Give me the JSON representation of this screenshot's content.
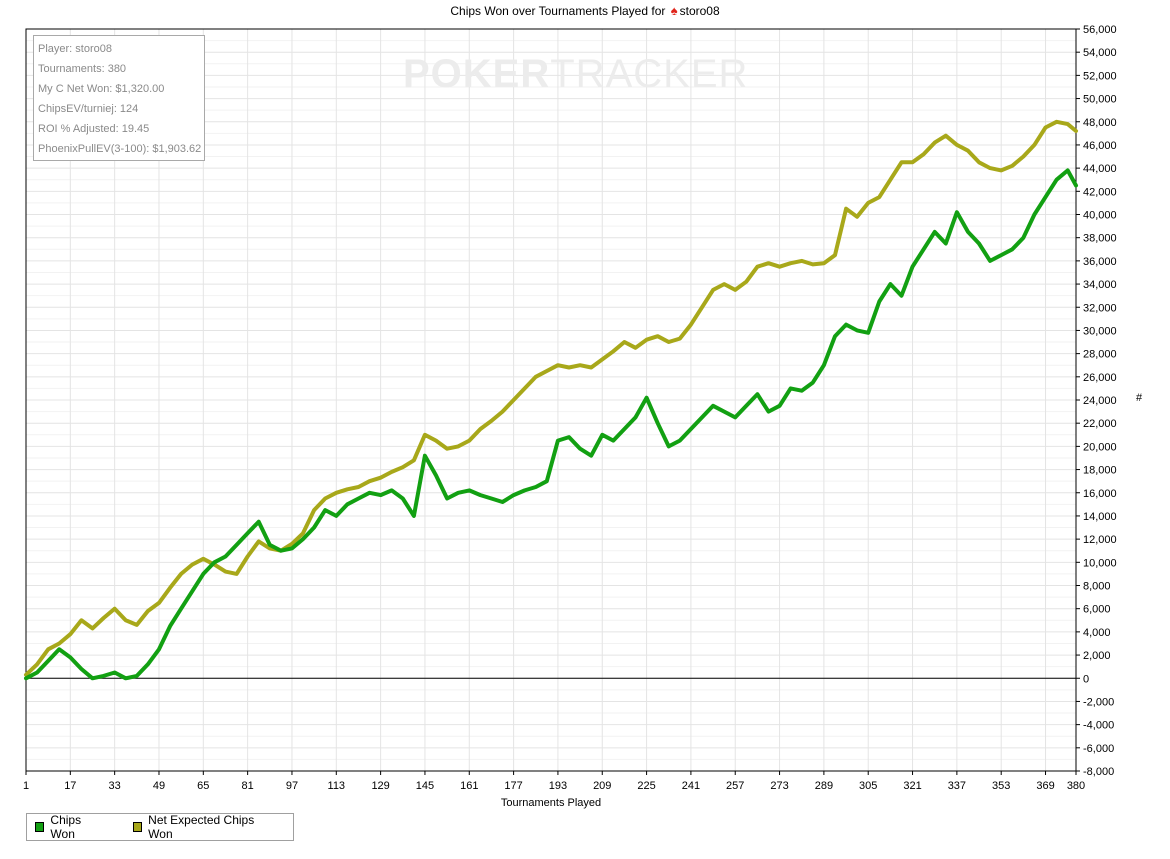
{
  "title": {
    "prefix": "Chips Won over Tournaments Played for",
    "player": "storo08"
  },
  "watermark": {
    "bold_part": "POKER",
    "thin_part": "TRACKER"
  },
  "stats": [
    {
      "label": "Player",
      "value": "storo08",
      "text": "Player: storo08"
    },
    {
      "label": "Tournaments",
      "value": "380",
      "text": "Tournaments: 380"
    },
    {
      "label": "My C Net Won",
      "value": "$1,320.00",
      "text": "My C Net Won: $1,320.00"
    },
    {
      "label": "ChipsEV/turniej",
      "value": "124",
      "text": "ChipsEV/turniej: 124"
    },
    {
      "label": "ROI % Adjusted",
      "value": "19.45",
      "text": "ROI % Adjusted: 19.45"
    },
    {
      "label": "PhoenixPullEV(3-100)",
      "value": "$1,903.62",
      "text": "PhoenixPullEV(3-100): $1,903.62"
    }
  ],
  "legend": [
    {
      "name": "Chips Won",
      "color": "#12a012"
    },
    {
      "name": "Net Expected Chips Won",
      "color": "#a8a81a"
    }
  ],
  "chart_data": {
    "type": "line",
    "title": "Chips Won over Tournaments Played for storo08",
    "xlabel": "Tournaments Played",
    "ylabel": "#",
    "xlim": [
      1,
      380
    ],
    "ylim": [
      -8000,
      56000
    ],
    "x_ticks": [
      1,
      17,
      33,
      49,
      65,
      81,
      97,
      113,
      129,
      145,
      161,
      177,
      193,
      209,
      225,
      241,
      257,
      273,
      289,
      305,
      321,
      337,
      353,
      369,
      380
    ],
    "y_ticks": [
      -8000,
      -6000,
      -4000,
      -2000,
      0,
      2000,
      4000,
      6000,
      8000,
      10000,
      12000,
      14000,
      16000,
      18000,
      20000,
      22000,
      24000,
      26000,
      28000,
      30000,
      32000,
      34000,
      36000,
      38000,
      40000,
      42000,
      44000,
      46000,
      48000,
      50000,
      52000,
      54000,
      56000
    ],
    "y_tick_labels": [
      "-8,000",
      "-6,000",
      "-4,000",
      "-2,000",
      "0",
      "2,000",
      "4,000",
      "6,000",
      "8,000",
      "10,000",
      "12,000",
      "14,000",
      "16,000",
      "18,000",
      "20,000",
      "22,000",
      "24,000",
      "26,000",
      "28,000",
      "30,000",
      "32,000",
      "34,000",
      "36,000",
      "38,000",
      "40,000",
      "42,000",
      "44,000",
      "46,000",
      "48,000",
      "50,000",
      "52,000",
      "54,000",
      "56,000"
    ],
    "grid": true,
    "legend_position": "bottom-left",
    "series": [
      {
        "name": "Chips Won",
        "color": "#12a012",
        "x": [
          1,
          5,
          9,
          13,
          17,
          21,
          25,
          29,
          33,
          37,
          41,
          45,
          49,
          53,
          57,
          61,
          65,
          69,
          73,
          77,
          81,
          85,
          89,
          93,
          97,
          101,
          105,
          109,
          113,
          117,
          121,
          125,
          129,
          133,
          137,
          141,
          145,
          149,
          153,
          157,
          161,
          165,
          169,
          173,
          177,
          181,
          185,
          189,
          193,
          197,
          201,
          205,
          209,
          213,
          217,
          221,
          225,
          229,
          233,
          237,
          241,
          245,
          249,
          253,
          257,
          261,
          265,
          269,
          273,
          277,
          281,
          285,
          289,
          293,
          297,
          301,
          305,
          309,
          313,
          317,
          321,
          325,
          329,
          333,
          337,
          341,
          345,
          349,
          353,
          357,
          361,
          365,
          369,
          373,
          377,
          380
        ],
        "y": [
          0,
          500,
          1500,
          2500,
          1800,
          800,
          0,
          200,
          500,
          0,
          200,
          1200,
          2500,
          4500,
          6000,
          7500,
          9000,
          10000,
          10500,
          11500,
          12500,
          13500,
          11500,
          11000,
          11200,
          12000,
          13000,
          14500,
          14000,
          15000,
          15500,
          16000,
          15800,
          16200,
          15500,
          14000,
          19200,
          17500,
          15500,
          16000,
          16200,
          15800,
          15500,
          15200,
          15800,
          16200,
          16500,
          17000,
          20500,
          20800,
          19800,
          19200,
          21000,
          20500,
          21500,
          22500,
          24200,
          22000,
          20000,
          20500,
          21500,
          22500,
          23500,
          23000,
          22500,
          23500,
          24500,
          23000,
          23500,
          25000,
          24800,
          25500,
          27000,
          29500,
          30500,
          30000,
          29800,
          32500,
          34000,
          33000,
          35500,
          37000,
          38500,
          37500,
          40200,
          38500,
          37500,
          36000,
          36500,
          37000,
          38000,
          40000,
          41500,
          43000,
          43800,
          42500
        ]
      },
      {
        "name": "Net Expected Chips Won",
        "color": "#a8a81a",
        "x": [
          1,
          5,
          9,
          13,
          17,
          21,
          25,
          29,
          33,
          37,
          41,
          45,
          49,
          53,
          57,
          61,
          65,
          69,
          73,
          77,
          81,
          85,
          89,
          93,
          97,
          101,
          105,
          109,
          113,
          117,
          121,
          125,
          129,
          133,
          137,
          141,
          145,
          149,
          153,
          157,
          161,
          165,
          169,
          173,
          177,
          181,
          185,
          189,
          193,
          197,
          201,
          205,
          209,
          213,
          217,
          221,
          225,
          229,
          233,
          237,
          241,
          245,
          249,
          253,
          257,
          261,
          265,
          269,
          273,
          277,
          281,
          285,
          289,
          293,
          297,
          301,
          305,
          309,
          313,
          317,
          321,
          325,
          329,
          333,
          337,
          341,
          345,
          349,
          353,
          357,
          361,
          365,
          369,
          373,
          377,
          380
        ],
        "y": [
          300,
          1200,
          2500,
          3000,
          3800,
          5000,
          4300,
          5200,
          6000,
          5000,
          4600,
          5800,
          6500,
          7800,
          9000,
          9800,
          10300,
          9800,
          9200,
          9000,
          10500,
          11800,
          11200,
          11000,
          11600,
          12500,
          14500,
          15500,
          16000,
          16300,
          16500,
          17000,
          17300,
          17800,
          18200,
          18800,
          21000,
          20500,
          19800,
          20000,
          20500,
          21500,
          22200,
          23000,
          24000,
          25000,
          26000,
          26500,
          27000,
          26800,
          27000,
          26800,
          27500,
          28200,
          29000,
          28500,
          29200,
          29500,
          29000,
          29300,
          30500,
          32000,
          33500,
          34000,
          33500,
          34200,
          35500,
          35800,
          35500,
          35800,
          36000,
          35700,
          35800,
          36500,
          40500,
          39800,
          41000,
          41500,
          43000,
          44500,
          44500,
          45200,
          46200,
          46800,
          46000,
          45500,
          44500,
          44000,
          43800,
          44200,
          45000,
          46000,
          47500,
          48000,
          47800,
          47200
        ]
      }
    ]
  }
}
